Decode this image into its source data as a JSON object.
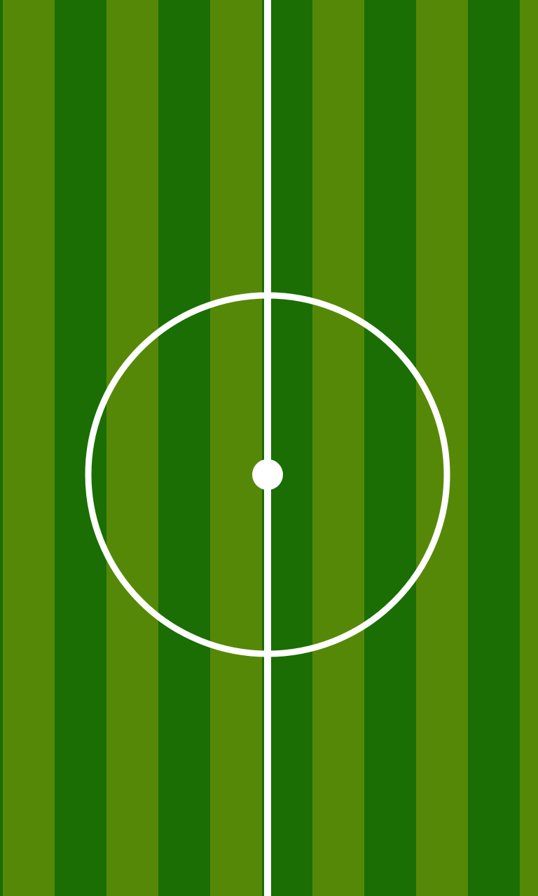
{
  "scene": {
    "type": "soccer-pitch-midfield",
    "stripe_count": 10,
    "colors": {
      "grass_light": "#568807",
      "grass_dark": "#1A6E03",
      "markings": "#FFFFFF"
    },
    "markings": [
      "halfway-line",
      "center-circle",
      "center-spot"
    ]
  }
}
